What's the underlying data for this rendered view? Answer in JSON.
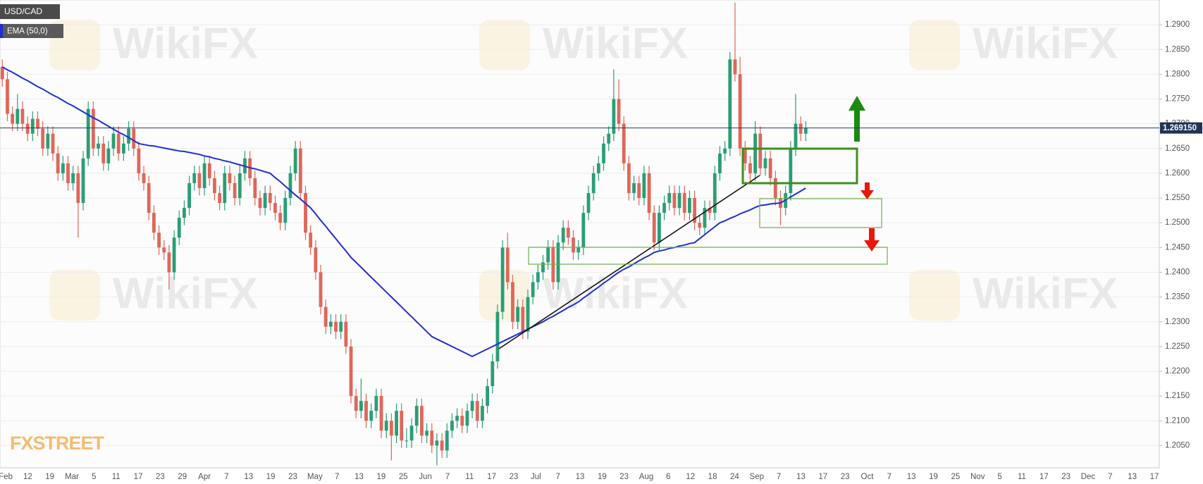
{
  "chart_data": {
    "type": "candlestick",
    "symbol": "USD/CAD",
    "watermark": "WikiFX",
    "source": "FXSTREET",
    "up_color": "#2b9e74",
    "down_color": "#e0665a",
    "x_labels": [
      "Feb",
      "12",
      "19",
      "Mar",
      "5",
      "11",
      "17",
      "23",
      "29",
      "Apr",
      "7",
      "13",
      "19",
      "23",
      "May",
      "7",
      "13",
      "19",
      "25",
      "Jun",
      "7",
      "11",
      "17",
      "23",
      "Jul",
      "7",
      "13",
      "19",
      "23",
      "Aug",
      "6",
      "12",
      "18",
      "24",
      "Sep",
      "7",
      "13",
      "17",
      "23",
      "Oct",
      "7",
      "13",
      "19",
      "25",
      "Nov",
      "5",
      "11",
      "17",
      "23",
      "Dec",
      "7",
      "13",
      "17"
    ],
    "open": [
      1.2815,
      1.279,
      1.272,
      1.27,
      1.273,
      1.27,
      1.268,
      1.271,
      1.269,
      1.265,
      1.268,
      1.264,
      1.26,
      1.262,
      1.258,
      1.26,
      1.254,
      1.263,
      1.273,
      1.265,
      1.266,
      1.262,
      1.265,
      1.268,
      1.264,
      1.266,
      1.269,
      1.265,
      1.26,
      1.258,
      1.252,
      1.248,
      1.245,
      1.244,
      1.24,
      1.247,
      1.251,
      1.253,
      1.258,
      1.26,
      1.257,
      1.262,
      1.259,
      1.256,
      1.254,
      1.26,
      1.258,
      1.255,
      1.26,
      1.263,
      1.259,
      1.255,
      1.253,
      1.256,
      1.254,
      1.252,
      1.25,
      1.255,
      1.26,
      1.265,
      1.256,
      1.248,
      1.245,
      1.24,
      1.233,
      1.229,
      1.23,
      1.228,
      1.23,
      1.225,
      1.215,
      1.212,
      1.214,
      1.21,
      1.212,
      1.215,
      1.208,
      1.21,
      1.207,
      1.212,
      1.206,
      1.206,
      1.209,
      1.213,
      1.207,
      1.208,
      1.205,
      1.206,
      1.204,
      1.208,
      1.21,
      1.211,
      1.209,
      1.212,
      1.214,
      1.21,
      1.213,
      1.217,
      1.222,
      1.232,
      1.245,
      1.238,
      1.23,
      1.233,
      1.228,
      1.235,
      1.238,
      1.24,
      1.242,
      1.245,
      1.238,
      1.246,
      1.249,
      1.247,
      1.244,
      1.245,
      1.252,
      1.256,
      1.26,
      1.262,
      1.266,
      1.268,
      1.275,
      1.27,
      1.262,
      1.256,
      1.258,
      1.255,
      1.26,
      1.252,
      1.246,
      1.252,
      1.254,
      1.256,
      1.253,
      1.256,
      1.252,
      1.255,
      1.25,
      1.249,
      1.253,
      1.252,
      1.26,
      1.264,
      1.265,
      1.283,
      1.28,
      1.265,
      1.262,
      1.26,
      1.268,
      1.261,
      1.263,
      1.259,
      1.255,
      1.253,
      1.256,
      1.265,
      1.27,
      1.268
    ],
    "high": [
      1.283,
      1.2805,
      1.2735,
      1.276,
      1.2745,
      1.2715,
      1.2725,
      1.2725,
      1.2705,
      1.2695,
      1.2695,
      1.2655,
      1.2635,
      1.2635,
      1.2615,
      1.2615,
      1.2645,
      1.2745,
      1.2745,
      1.2675,
      1.2675,
      1.2665,
      1.2695,
      1.2695,
      1.2675,
      1.2705,
      1.2705,
      1.2665,
      1.2615,
      1.2595,
      1.2535,
      1.2495,
      1.2465,
      1.2455,
      1.2485,
      1.2525,
      1.2545,
      1.2595,
      1.2615,
      1.2615,
      1.2635,
      1.2635,
      1.2605,
      1.2575,
      1.2615,
      1.2615,
      1.2595,
      1.2615,
      1.2645,
      1.2645,
      1.2605,
      1.2565,
      1.2575,
      1.2575,
      1.2555,
      1.2535,
      1.2565,
      1.2615,
      1.2665,
      1.2665,
      1.2575,
      1.2495,
      1.2465,
      1.2415,
      1.2345,
      1.2315,
      1.2315,
      1.2315,
      1.2315,
      1.2265,
      1.2165,
      1.2185,
      1.2155,
      1.2135,
      1.2165,
      1.2165,
      1.2115,
      1.2115,
      1.2135,
      1.2135,
      1.2085,
      1.2105,
      1.2145,
      1.2145,
      1.2095,
      1.2095,
      1.2075,
      1.2075,
      1.2095,
      1.2115,
      1.2125,
      1.2125,
      1.2135,
      1.2155,
      1.2155,
      1.2145,
      1.2185,
      1.2235,
      1.2335,
      1.2465,
      1.248,
      1.2395,
      1.2345,
      1.2345,
      1.2365,
      1.2395,
      1.2415,
      1.2435,
      1.2465,
      1.2465,
      1.2475,
      1.2505,
      1.2505,
      1.2485,
      1.2465,
      1.2535,
      1.2575,
      1.2615,
      1.2635,
      1.2675,
      1.2695,
      1.281,
      1.279,
      1.2715,
      1.2635,
      1.2595,
      1.2595,
      1.2615,
      1.2615,
      1.2535,
      1.2535,
      1.2555,
      1.2575,
      1.2575,
      1.2575,
      1.2575,
      1.2565,
      1.2565,
      1.2515,
      1.2545,
      1.2545,
      1.2615,
      1.2655,
      1.2665,
      1.2845,
      1.2945,
      1.2835,
      1.2665,
      1.2635,
      1.2705,
      1.2695,
      1.2645,
      1.2645,
      1.2605,
      1.2565,
      1.2575,
      1.2665,
      1.276,
      1.2715,
      1.2705
    ],
    "low": [
      1.2775,
      1.2705,
      1.2685,
      1.2685,
      1.2685,
      1.2665,
      1.2665,
      1.2675,
      1.2635,
      1.2635,
      1.2625,
      1.2585,
      1.2585,
      1.2565,
      1.2565,
      1.247,
      1.2525,
      1.2615,
      1.2635,
      1.2635,
      1.2605,
      1.2605,
      1.2635,
      1.2625,
      1.2625,
      1.2645,
      1.2635,
      1.2585,
      1.2565,
      1.2505,
      1.2465,
      1.2435,
      1.2425,
      1.2365,
      1.2385,
      1.2455,
      1.2495,
      1.2515,
      1.2565,
      1.2555,
      1.2555,
      1.2575,
      1.2545,
      1.2525,
      1.2525,
      1.2565,
      1.2535,
      1.2535,
      1.2585,
      1.2575,
      1.2535,
      1.2515,
      1.2515,
      1.2525,
      1.2505,
      1.2485,
      1.2485,
      1.2535,
      1.2585,
      1.2545,
      1.2465,
      1.2435,
      1.2385,
      1.2315,
      1.2275,
      1.2275,
      1.2265,
      1.2265,
      1.2235,
      1.2135,
      1.2105,
      1.2105,
      1.2085,
      1.2085,
      1.2105,
      1.2065,
      1.2065,
      1.202,
      1.2055,
      1.2045,
      1.2045,
      1.2045,
      1.2075,
      1.2055,
      1.2055,
      1.2035,
      1.201,
      1.2025,
      1.2025,
      1.2065,
      1.2085,
      1.2075,
      1.2075,
      1.2105,
      1.2085,
      1.2085,
      1.2115,
      1.2155,
      1.2205,
      1.2305,
      1.2365,
      1.2285,
      1.2285,
      1.2265,
      1.2265,
      1.2335,
      1.2365,
      1.2385,
      1.2405,
      1.2365,
      1.2365,
      1.2445,
      1.2455,
      1.2425,
      1.2425,
      1.2435,
      1.2505,
      1.2545,
      1.2585,
      1.2605,
      1.2645,
      1.2665,
      1.2685,
      1.2605,
      1.2545,
      1.2545,
      1.2535,
      1.2535,
      1.2505,
      1.2445,
      1.2445,
      1.2505,
      1.2525,
      1.2515,
      1.2515,
      1.2505,
      1.2505,
      1.2485,
      1.2475,
      1.2475,
      1.2505,
      1.2505,
      1.2585,
      1.2625,
      1.2635,
      1.2785,
      1.2635,
      1.2605,
      1.2585,
      1.2585,
      1.2595,
      1.2595,
      1.2575,
      1.2535,
      1.2495,
      1.2515,
      1.2545,
      1.2635,
      1.2665,
      1.2665
    ],
    "close": [
      1.279,
      1.272,
      1.27,
      1.273,
      1.27,
      1.268,
      1.271,
      1.269,
      1.265,
      1.268,
      1.264,
      1.26,
      1.262,
      1.258,
      1.26,
      1.254,
      1.263,
      1.273,
      1.265,
      1.266,
      1.262,
      1.265,
      1.268,
      1.264,
      1.266,
      1.269,
      1.265,
      1.26,
      1.258,
      1.252,
      1.248,
      1.245,
      1.244,
      1.24,
      1.247,
      1.251,
      1.253,
      1.258,
      1.26,
      1.257,
      1.262,
      1.259,
      1.256,
      1.254,
      1.26,
      1.258,
      1.255,
      1.26,
      1.263,
      1.259,
      1.255,
      1.253,
      1.256,
      1.254,
      1.252,
      1.25,
      1.255,
      1.26,
      1.265,
      1.256,
      1.248,
      1.245,
      1.24,
      1.233,
      1.229,
      1.23,
      1.228,
      1.23,
      1.225,
      1.215,
      1.212,
      1.214,
      1.21,
      1.212,
      1.215,
      1.208,
      1.21,
      1.207,
      1.212,
      1.206,
      1.206,
      1.209,
      1.213,
      1.207,
      1.208,
      1.205,
      1.206,
      1.204,
      1.208,
      1.21,
      1.211,
      1.209,
      1.212,
      1.214,
      1.21,
      1.213,
      1.217,
      1.222,
      1.232,
      1.245,
      1.238,
      1.23,
      1.233,
      1.228,
      1.235,
      1.238,
      1.24,
      1.242,
      1.245,
      1.238,
      1.246,
      1.249,
      1.247,
      1.244,
      1.245,
      1.252,
      1.256,
      1.26,
      1.262,
      1.266,
      1.268,
      1.275,
      1.27,
      1.262,
      1.256,
      1.258,
      1.255,
      1.26,
      1.252,
      1.246,
      1.252,
      1.254,
      1.256,
      1.253,
      1.256,
      1.252,
      1.255,
      1.25,
      1.249,
      1.253,
      1.252,
      1.26,
      1.264,
      1.265,
      1.283,
      1.28,
      1.265,
      1.262,
      1.26,
      1.268,
      1.261,
      1.263,
      1.259,
      1.255,
      1.253,
      1.256,
      1.265,
      1.27,
      1.268,
      1.26915
    ],
    "ema": {
      "name": "EMA (50,0)",
      "color": "#1f2fd0",
      "values": [
        1.2815,
        1.2809,
        1.2804,
        1.2798,
        1.2792,
        1.2787,
        1.2781,
        1.2775,
        1.277,
        1.2764,
        1.2758,
        1.2753,
        1.2747,
        1.2741,
        1.2736,
        1.273,
        1.2724,
        1.2718,
        1.2712,
        1.2707,
        1.2701,
        1.2695,
        1.2689,
        1.2683,
        1.2678,
        1.2672,
        1.2666,
        1.266,
        1.2658,
        1.2656,
        1.2655,
        1.2653,
        1.2651,
        1.2649,
        1.2647,
        1.2645,
        1.2644,
        1.2642,
        1.264,
        1.2638,
        1.2635,
        1.2633,
        1.263,
        1.2628,
        1.2625,
        1.2623,
        1.262,
        1.2617,
        1.2614,
        1.2611,
        1.2609,
        1.2606,
        1.2603,
        1.26,
        1.2591,
        1.2583,
        1.2574,
        1.2565,
        1.2556,
        1.2548,
        1.2539,
        1.253,
        1.2518,
        1.2505,
        1.2493,
        1.248,
        1.2468,
        1.2455,
        1.2443,
        1.243,
        1.242,
        1.241,
        1.24,
        1.239,
        1.238,
        1.237,
        1.236,
        1.235,
        1.234,
        1.233,
        1.232,
        1.231,
        1.23,
        1.229,
        1.228,
        1.227,
        1.2265,
        1.226,
        1.2255,
        1.225,
        1.2245,
        1.224,
        1.2235,
        1.223,
        1.2235,
        1.224,
        1.2245,
        1.225,
        1.2255,
        1.226,
        1.2265,
        1.227,
        1.2275,
        1.228,
        1.2285,
        1.229,
        1.2295,
        1.23,
        1.2306,
        1.2311,
        1.2317,
        1.2323,
        1.2329,
        1.2334,
        1.234,
        1.2348,
        1.2355,
        1.2363,
        1.237,
        1.2378,
        1.2385,
        1.2393,
        1.24,
        1.2406,
        1.2411,
        1.2417,
        1.2423,
        1.2429,
        1.2434,
        1.244,
        1.2443,
        1.2445,
        1.2448,
        1.245,
        1.2453,
        1.2455,
        1.2458,
        1.246,
        1.2468,
        1.2476,
        1.2484,
        1.2492,
        1.25,
        1.2504,
        1.2509,
        1.2513,
        1.2518,
        1.2522,
        1.2526,
        1.2531,
        1.2535,
        1.2536,
        1.2538,
        1.2539,
        1.254,
        1.2546,
        1.2552,
        1.2558,
        1.2564,
        1.257
      ]
    },
    "last_price": {
      "value": 1.26915,
      "label": "1.269150"
    },
    "ylim": [
      1.2005,
      1.295
    ],
    "yticks": [
      {
        "value": 1.205,
        "label": "1.2050"
      },
      {
        "value": 1.21,
        "label": "1.2100"
      },
      {
        "value": 1.215,
        "label": "1.2150"
      },
      {
        "value": 1.22,
        "label": "1.2200"
      },
      {
        "value": 1.225,
        "label": "1.2250"
      },
      {
        "value": 1.23,
        "label": "1.2300"
      },
      {
        "value": 1.235,
        "label": "1.2350"
      },
      {
        "value": 1.24,
        "label": "1.2400"
      },
      {
        "value": 1.245,
        "label": "1.2450"
      },
      {
        "value": 1.25,
        "label": "1.2500"
      },
      {
        "value": 1.255,
        "label": "1.2550"
      },
      {
        "value": 1.26,
        "label": "1.2600"
      },
      {
        "value": 1.265,
        "label": "1.2650"
      },
      {
        "value": 1.27,
        "label": "1.2700"
      },
      {
        "value": 1.275,
        "label": "1.2750"
      },
      {
        "value": 1.28,
        "label": "1.2800"
      },
      {
        "value": 1.285,
        "label": "1.2850"
      },
      {
        "value": 1.29,
        "label": "1.2900"
      }
    ],
    "grid": true
  }
}
